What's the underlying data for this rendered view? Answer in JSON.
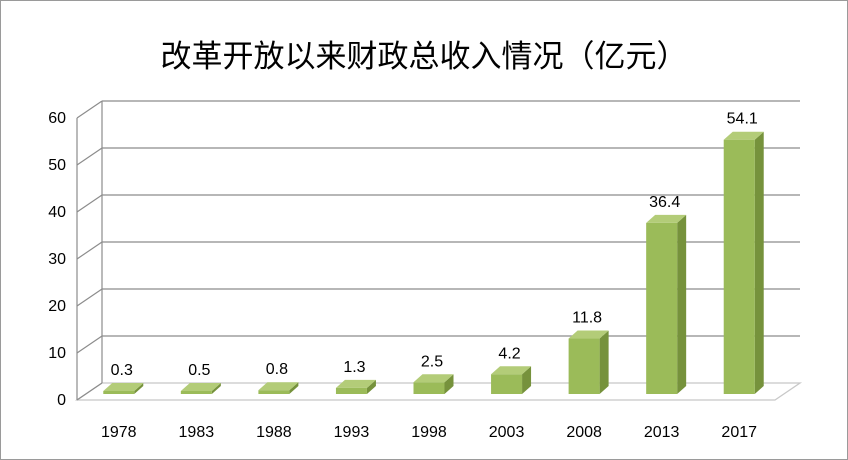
{
  "chart_data": {
    "type": "bar",
    "title": "改革开放以来财政总收入情况（亿元）",
    "categories": [
      "1978",
      "1983",
      "1988",
      "1993",
      "1998",
      "2003",
      "2008",
      "2013",
      "2017"
    ],
    "values": [
      0.3,
      0.5,
      0.8,
      1.3,
      2.5,
      4.2,
      11.8,
      36.4,
      54.1
    ],
    "value_labels": [
      "0.3",
      "0.5",
      "0.8",
      "1.3",
      "2.5",
      "4.2",
      "11.8",
      "36.4",
      "54.1"
    ],
    "y_ticks": [
      "0",
      "10",
      "20",
      "30",
      "40",
      "50",
      "60"
    ],
    "ylim": [
      0,
      60
    ],
    "xlabel": "",
    "ylabel": "",
    "grid": true,
    "legend": "none",
    "colors": {
      "bar_front": "#9bbb59",
      "bar_side": "#76923c",
      "bar_top": "#b3cc78",
      "grid": "#8c8c8c",
      "floor": "#c8c8c8"
    }
  }
}
